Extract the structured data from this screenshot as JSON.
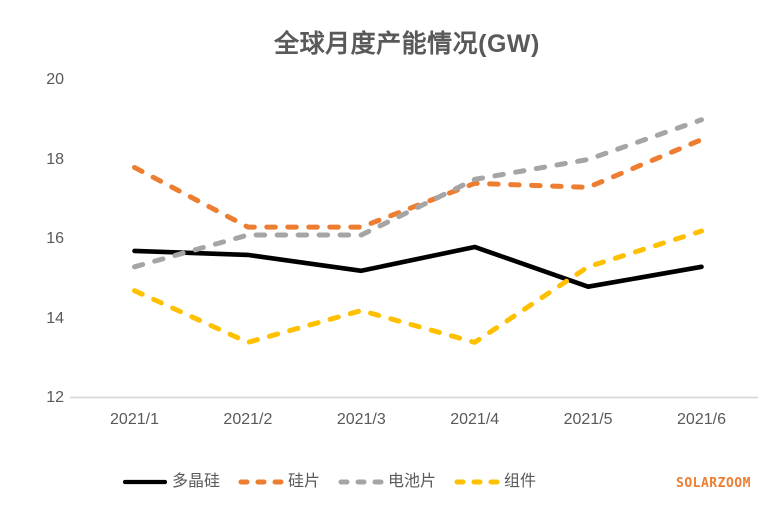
{
  "chart_data": {
    "type": "line",
    "title": "全球月度产能情况(GW)",
    "categories": [
      "2021/1",
      "2021/2",
      "2021/3",
      "2021/4",
      "2021/5",
      "2021/6"
    ],
    "series": [
      {
        "id": "polysilicon",
        "name": "多晶硅",
        "color": "#000000",
        "dashed": false,
        "values": [
          15.7,
          15.6,
          15.2,
          15.8,
          14.8,
          15.3
        ]
      },
      {
        "id": "wafer",
        "name": "硅片",
        "color": "#ED7D31",
        "dashed": true,
        "values": [
          17.8,
          16.3,
          16.3,
          17.4,
          17.3,
          18.5
        ]
      },
      {
        "id": "cell",
        "name": "电池片",
        "color": "#A5A5A5",
        "dashed": true,
        "values": [
          15.3,
          16.1,
          16.1,
          17.5,
          18.0,
          19.0
        ]
      },
      {
        "id": "module",
        "name": "组件",
        "color": "#FFC000",
        "dashed": true,
        "values": [
          14.7,
          13.4,
          14.2,
          13.4,
          15.3,
          16.2
        ]
      }
    ],
    "ylim": [
      12,
      20
    ],
    "yticks": [
      12,
      14,
      16,
      18,
      20
    ],
    "grid": false,
    "legend_position": "bottom"
  },
  "watermark": "SOLARZOOM",
  "style": {
    "title_color": "#595959",
    "tick_label_color": "#595959",
    "legend_label_color": "#595959",
    "axis_line_color": "#D9D9D9",
    "watermark_color": "#ED7D31",
    "background": "#FFFFFF"
  }
}
